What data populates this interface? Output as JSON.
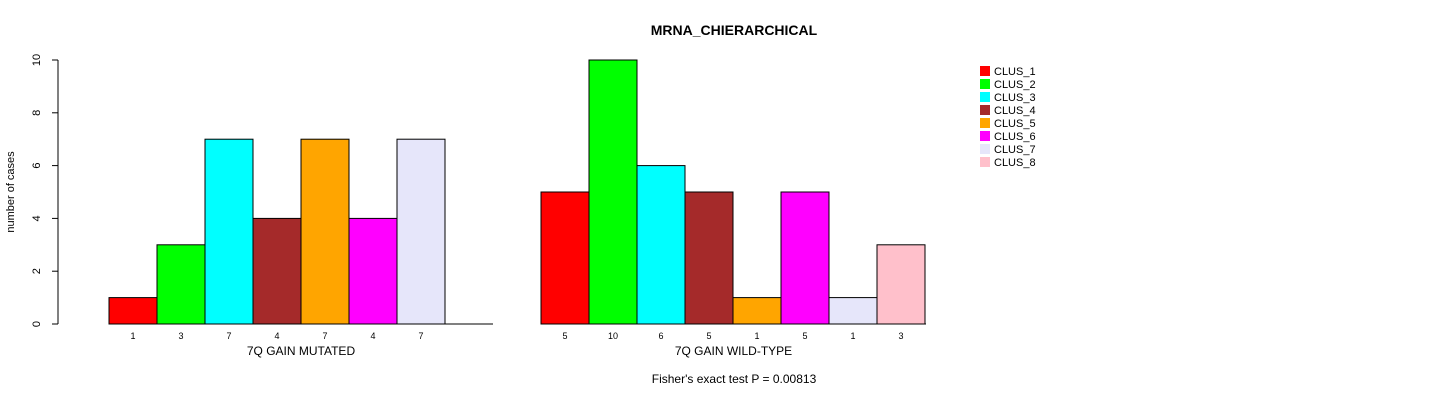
{
  "chart_data": {
    "type": "bar",
    "title": "MRNA_CHIERARCHICAL",
    "ylabel": "number of cases",
    "ylim": [
      0,
      10
    ],
    "yticks": [
      "0",
      "2",
      "4",
      "6",
      "8",
      "10"
    ],
    "grid": false,
    "legend_position": "top-right",
    "footnote": "Fisher's exact test P = 0.00813",
    "categories": [
      "CLUS_1",
      "CLUS_2",
      "CLUS_3",
      "CLUS_4",
      "CLUS_5",
      "CLUS_6",
      "CLUS_7",
      "CLUS_8"
    ],
    "colors": [
      "#FF0000",
      "#00FF00",
      "#00FFFF",
      "#A52A2A",
      "#FFA500",
      "#FF00FF",
      "#E6E6FA",
      "#FFC0CB"
    ],
    "groups": [
      {
        "label": "7Q GAIN MUTATED",
        "values": [
          1,
          3,
          7,
          4,
          7,
          4,
          7,
          0
        ],
        "count_labels": [
          "1",
          "3",
          "7",
          "4",
          "7",
          "4",
          "7",
          ""
        ]
      },
      {
        "label": "7Q GAIN WILD-TYPE",
        "values": [
          5,
          10,
          6,
          5,
          1,
          5,
          1,
          3
        ],
        "count_labels": [
          "5",
          "10",
          "6",
          "5",
          "1",
          "5",
          "1",
          "3"
        ]
      }
    ]
  }
}
